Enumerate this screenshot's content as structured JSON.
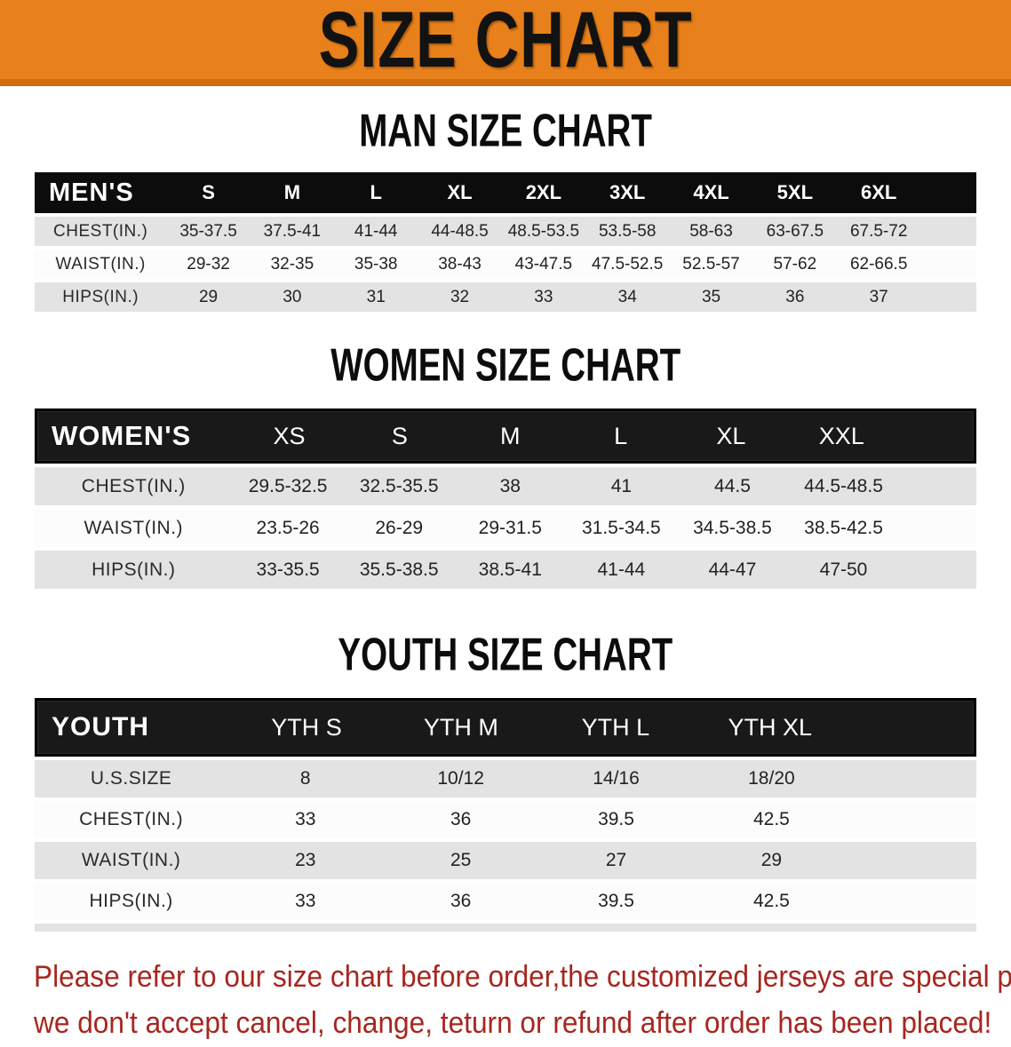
{
  "banner": {
    "title": "SIZE CHART"
  },
  "sections": [
    {
      "heading": "MAN SIZE CHART",
      "table": {
        "header_label": "MEN'S",
        "columns": [
          "S",
          "M",
          "L",
          "XL",
          "2XL",
          "3XL",
          "4XL",
          "5XL",
          "6XL"
        ],
        "rows": [
          {
            "label": "CHEST(IN.)",
            "values": [
              "35-37.5",
              "37.5-41",
              "41-44",
              "44-48.5",
              "48.5-53.5",
              "53.5-58",
              "58-63",
              "63-67.5",
              "67.5-72"
            ]
          },
          {
            "label": "WAIST(IN.)",
            "values": [
              "29-32",
              "32-35",
              "35-38",
              "38-43",
              "43-47.5",
              "47.5-52.5",
              "52.5-57",
              "57-62",
              "62-66.5"
            ]
          },
          {
            "label": "HIPS(IN.)",
            "values": [
              "29",
              "30",
              "31",
              "32",
              "33",
              "34",
              "35",
              "36",
              "37"
            ]
          }
        ]
      }
    },
    {
      "heading": "WOMEN SIZE CHART",
      "table": {
        "header_label": "WOMEN'S",
        "columns": [
          "XS",
          "S",
          "M",
          "L",
          "XL",
          "XXL"
        ],
        "rows": [
          {
            "label": "CHEST(IN.)",
            "values": [
              "29.5-32.5",
              "32.5-35.5",
              "38",
              "41",
              "44.5",
              "44.5-48.5"
            ]
          },
          {
            "label": "WAIST(IN.)",
            "values": [
              "23.5-26",
              "26-29",
              "29-31.5",
              "31.5-34.5",
              "34.5-38.5",
              "38.5-42.5"
            ]
          },
          {
            "label": "HIPS(IN.)",
            "values": [
              "33-35.5",
              "35.5-38.5",
              "38.5-41",
              "41-44",
              "44-47",
              "47-50"
            ]
          }
        ]
      }
    },
    {
      "heading": "YOUTH SIZE CHART",
      "table": {
        "header_label": "YOUTH",
        "columns": [
          "YTH S",
          "YTH M",
          "YTH L",
          "YTH XL"
        ],
        "rows": [
          {
            "label": "U.S.SIZE",
            "values": [
              "8",
              "10/12",
              "14/16",
              "18/20"
            ]
          },
          {
            "label": "CHEST(IN.)",
            "values": [
              "33",
              "36",
              "39.5",
              "42.5"
            ]
          },
          {
            "label": "WAIST(IN.)",
            "values": [
              "23",
              "25",
              "27",
              "29"
            ]
          },
          {
            "label": "HIPS(IN.)",
            "values": [
              "33",
              "36",
              "39.5",
              "42.5"
            ]
          }
        ]
      }
    }
  ],
  "disclaimer": {
    "line1": "Please refer to our size chart before order,the customized jerseys are special products,",
    "line2": "we don't accept cancel, change, teturn or refund after order has been placed!"
  },
  "colors": {
    "banner_orange": "#e8811b",
    "banner_edge": "#cf6c10",
    "header_black": "#0c0c0c",
    "row_shade_gray": "#e3e3e3",
    "disclaimer_red": "#a7261f"
  }
}
